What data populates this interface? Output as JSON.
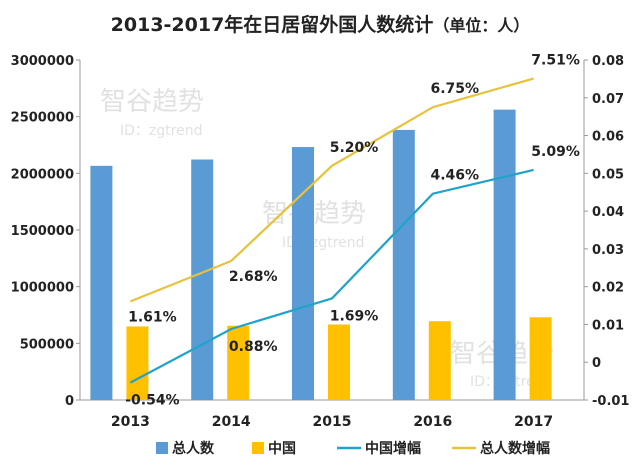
{
  "title": "2013-2017年在日居留外国人数统计",
  "title_unit": "（单位：人）",
  "watermark": {
    "brand": "智谷趋势",
    "id": "ID：zgtrend"
  },
  "colors": {
    "total_bar": "#5b9bd5",
    "china_bar": "#ffc000",
    "china_growth_line": "#1fa3c9",
    "total_growth_line": "#e8c23a"
  },
  "chart_data": {
    "type": "bar",
    "categories": [
      "2013",
      "2014",
      "2015",
      "2016",
      "2017"
    ],
    "series": [
      {
        "name": "总人数",
        "kind": "bar",
        "axis": "left",
        "values": [
          2066000,
          2122000,
          2232000,
          2383000,
          2562000
        ]
      },
      {
        "name": "中国",
        "kind": "bar",
        "axis": "left",
        "values": [
          649000,
          655000,
          666000,
          695000,
          730000
        ]
      },
      {
        "name": "中国增幅",
        "kind": "line",
        "axis": "right",
        "values": [
          -0.0054,
          0.0088,
          0.0169,
          0.0446,
          0.0509
        ],
        "labels": [
          "-0.54%",
          "0.88%",
          "1.69%",
          "4.46%",
          "5.09%"
        ]
      },
      {
        "name": "总人数增幅",
        "kind": "line",
        "axis": "right",
        "values": [
          0.0161,
          0.0268,
          0.052,
          0.0675,
          0.0751
        ],
        "labels": [
          "1.61%",
          "2.68%",
          "5.20%",
          "6.75%",
          "7.51%"
        ]
      }
    ],
    "left_axis": {
      "range": [
        0,
        3000000
      ],
      "ticks": [
        "0",
        "500000",
        "1000000",
        "1500000",
        "2000000",
        "2500000",
        "3000000"
      ]
    },
    "right_axis": {
      "range": [
        -0.01,
        0.08
      ],
      "ticks": [
        "-0.01",
        "0",
        "0.01",
        "0.02",
        "0.03",
        "0.04",
        "0.05",
        "0.06",
        "0.07",
        "0.08"
      ]
    },
    "grid": false,
    "legend_position": "bottom"
  }
}
